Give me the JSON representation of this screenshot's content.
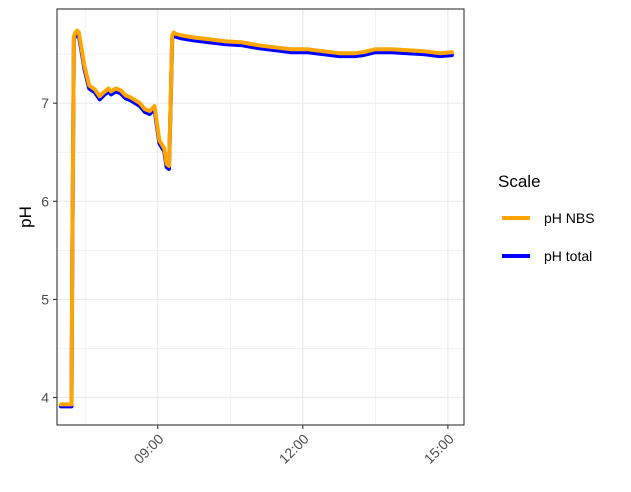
{
  "chart_data": {
    "type": "line",
    "title": "",
    "xlabel": "",
    "ylabel": "pH",
    "xlim": [
      "06:55",
      "15:20"
    ],
    "ylim": [
      3.72,
      7.96
    ],
    "x_ticks": [
      "09:00",
      "12:00",
      "15:00"
    ],
    "y_ticks": [
      4,
      5,
      6,
      7
    ],
    "grid": true,
    "legend": {
      "title": "Scale",
      "position": "right"
    },
    "series": [
      {
        "name": "pH NBS",
        "color": "#FFA500",
        "x": [
          "07:00",
          "07:13",
          "07:14",
          "07:16",
          "07:18",
          "07:20",
          "07:22",
          "07:25",
          "07:29",
          "07:35",
          "07:42",
          "07:48",
          "07:53",
          "07:59",
          "08:02",
          "08:08",
          "08:14",
          "08:20",
          "08:26",
          "08:32",
          "08:38",
          "08:44",
          "08:50",
          "08:56",
          "09:02",
          "09:08",
          "09:11",
          "09:14",
          "09:16",
          "09:18",
          "09:20",
          "09:21",
          "09:30",
          "09:45",
          "10:05",
          "10:25",
          "10:45",
          "11:05",
          "11:25",
          "11:45",
          "12:05",
          "12:25",
          "12:45",
          "13:05",
          "13:15",
          "13:30",
          "13:50",
          "14:10",
          "14:30",
          "14:50",
          "15:05"
        ],
        "y": [
          3.93,
          3.93,
          5.5,
          7.68,
          7.72,
          7.74,
          7.72,
          7.58,
          7.38,
          7.18,
          7.14,
          7.07,
          7.11,
          7.15,
          7.12,
          7.15,
          7.13,
          7.08,
          7.06,
          7.03,
          7.0,
          6.94,
          6.92,
          6.97,
          6.62,
          6.54,
          6.38,
          6.36,
          7.0,
          7.69,
          7.72,
          7.71,
          7.69,
          7.67,
          7.65,
          7.63,
          7.62,
          7.59,
          7.57,
          7.55,
          7.55,
          7.53,
          7.51,
          7.51,
          7.52,
          7.55,
          7.55,
          7.54,
          7.53,
          7.51,
          7.52
        ]
      },
      {
        "name": "pH total",
        "color": "#0000FF",
        "x": [
          "07:00",
          "07:13",
          "07:14",
          "07:16",
          "07:18",
          "07:20",
          "07:22",
          "07:25",
          "07:29",
          "07:35",
          "07:42",
          "07:48",
          "07:53",
          "07:59",
          "08:02",
          "08:08",
          "08:14",
          "08:20",
          "08:26",
          "08:32",
          "08:38",
          "08:44",
          "08:50",
          "08:56",
          "09:02",
          "09:08",
          "09:11",
          "09:14",
          "09:16",
          "09:18",
          "09:20",
          "09:21",
          "09:30",
          "09:45",
          "10:05",
          "10:25",
          "10:45",
          "11:05",
          "11:25",
          "11:45",
          "12:05",
          "12:25",
          "12:45",
          "13:05",
          "13:15",
          "13:30",
          "13:50",
          "14:10",
          "14:30",
          "14:50",
          "15:05"
        ],
        "y": [
          3.91,
          3.91,
          5.45,
          7.65,
          7.69,
          7.71,
          7.69,
          7.55,
          7.35,
          7.15,
          7.11,
          7.04,
          7.08,
          7.12,
          7.09,
          7.12,
          7.1,
          7.05,
          7.03,
          7.0,
          6.97,
          6.91,
          6.89,
          6.94,
          6.59,
          6.51,
          6.35,
          6.33,
          6.97,
          7.66,
          7.69,
          7.68,
          7.66,
          7.64,
          7.62,
          7.6,
          7.59,
          7.56,
          7.54,
          7.52,
          7.52,
          7.5,
          7.48,
          7.48,
          7.49,
          7.52,
          7.52,
          7.51,
          7.5,
          7.48,
          7.49
        ]
      }
    ]
  }
}
